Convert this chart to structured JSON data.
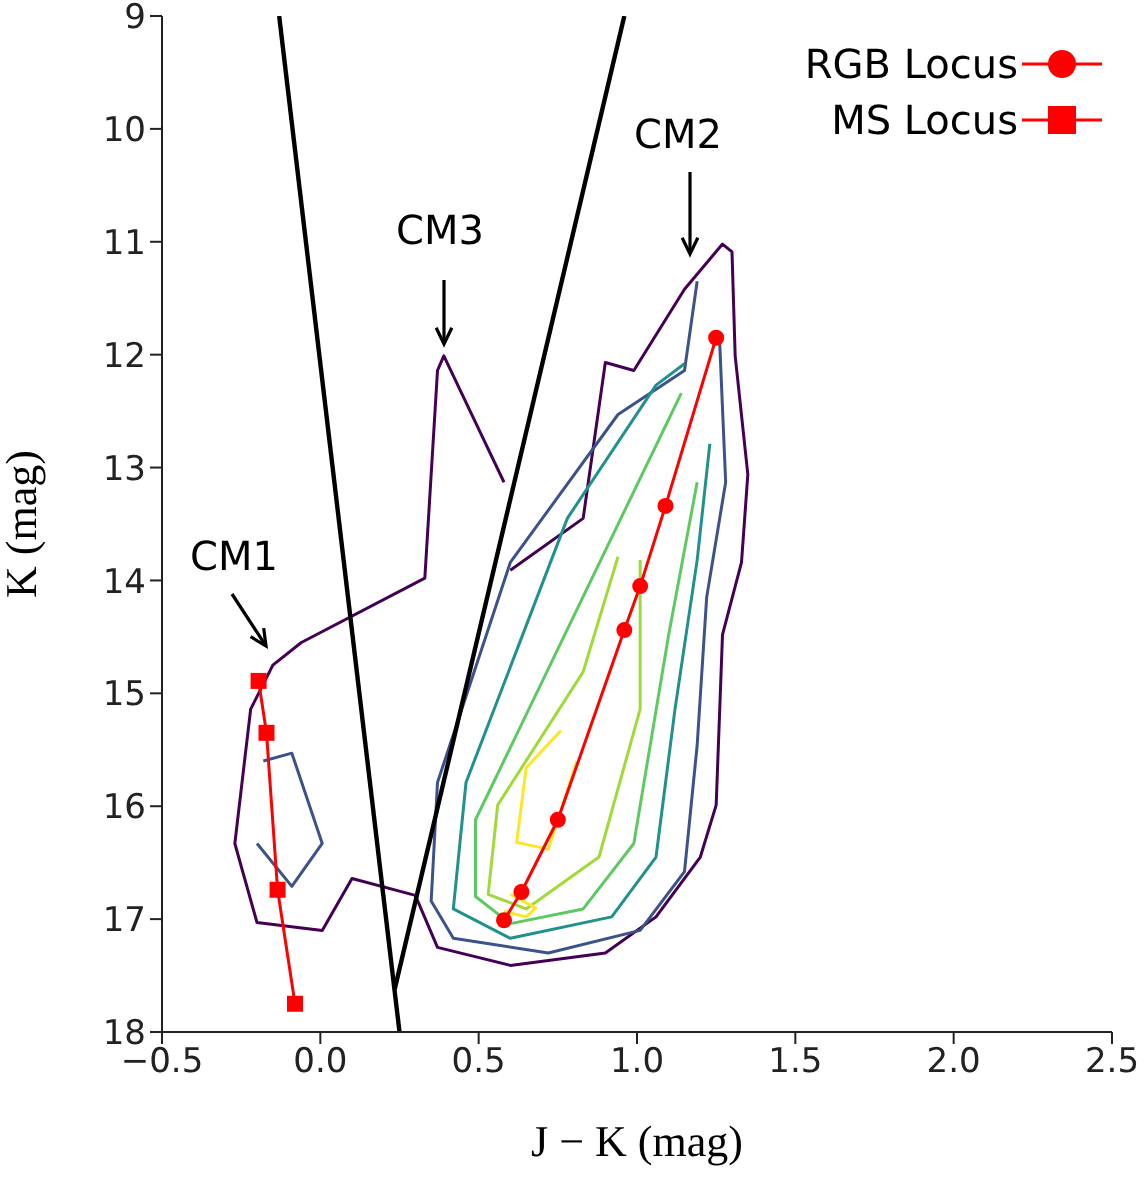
{
  "chart_data": {
    "type": "line",
    "xlabel": "J − K (mag)",
    "ylabel": "K (mag)",
    "xlim": [
      -0.5,
      2.5
    ],
    "xticks": [
      {
        "value": -0.5,
        "label": "−0.5"
      },
      {
        "value": 0,
        "label": "0.0"
      },
      {
        "value": 0.5,
        "label": "0.5"
      },
      {
        "value": 1,
        "label": "1.0"
      },
      {
        "value": 1.5,
        "label": "1.5"
      },
      {
        "value": 2,
        "label": "2.0"
      },
      {
        "value": 2.5,
        "label": "2.5"
      }
    ],
    "ylim": [
      18,
      9
    ],
    "yticks": [
      9,
      10,
      11,
      12,
      13,
      14,
      15,
      16,
      17,
      18
    ],
    "grid": false,
    "legend": "top right",
    "marker": "none",
    "line_style": "solid",
    "annotations": [
      "CM1",
      "CM2",
      "CM3"
    ],
    "series": [
      {
        "color": "#440154",
        "x": [
          0.6,
          0.83,
          0.9,
          0.99,
          1.15,
          1.27,
          1.3,
          1.31,
          1.35,
          1.33,
          1.27,
          1.25,
          1.2,
          1.06,
          0.9,
          0.6,
          0.37,
          0.3,
          0.1,
          0.006,
          -0.2,
          -0.27,
          -0.22,
          -0.15,
          -0.06,
          0.33,
          0.37,
          0.39,
          0.49,
          0.58
        ],
        "values": [
          13.91,
          13.45,
          12.07,
          12.14,
          11.42,
          11.02,
          11.09,
          12.01,
          13.06,
          13.84,
          14.48,
          15.99,
          16.45,
          16.98,
          17.3,
          17.41,
          17.25,
          16.79,
          16.64,
          17.1,
          17.03,
          16.33,
          15.14,
          14.75,
          14.55,
          13.98,
          12.14,
          12.01,
          12.6,
          13.13
        ]
      },
      {
        "color": "#3b528b",
        "x": [
          1.19,
          1.15,
          0.94,
          0.6,
          0.37,
          0.35,
          0.42,
          0.72,
          1.01,
          1.15,
          1.19,
          1.22,
          1.28,
          1.26
        ],
        "values": [
          11.35,
          12.14,
          12.53,
          13.84,
          15.79,
          16.84,
          17.17,
          17.3,
          17.1,
          16.58,
          15.46,
          14.15,
          13.13,
          11.82
        ]
      },
      {
        "color": "#3b528b",
        "x": [
          -0.18,
          -0.09,
          0.006,
          -0.09,
          -0.2
        ],
        "values": [
          15.6,
          15.53,
          16.33,
          16.71,
          16.33
        ]
      },
      {
        "color": "#21918c",
        "x": [
          1.15,
          1.06,
          0.78,
          0.46,
          0.42,
          0.6,
          0.92,
          1.06,
          1.12,
          1.19,
          1.23
        ],
        "values": [
          12.08,
          12.27,
          13.45,
          15.79,
          16.91,
          17.17,
          16.98,
          16.45,
          15.14,
          13.82,
          12.79
        ]
      },
      {
        "color": "#5ec962",
        "x": [
          1.14,
          0.49,
          0.49,
          0.6,
          0.83,
          0.99,
          1.1,
          1.19
        ],
        "values": [
          12.34,
          16.12,
          16.8,
          17.04,
          16.91,
          16.33,
          14.48,
          13.13
        ]
      },
      {
        "color": "#a0da39",
        "x": [
          0.94,
          0.83,
          0.56,
          0.53,
          0.65,
          0.88,
          1.01,
          1.01
        ],
        "values": [
          13.79,
          14.81,
          15.99,
          16.78,
          16.91,
          16.45,
          15.14,
          13.82
        ]
      },
      {
        "color": "#fde725",
        "x": [
          0.76,
          0.65,
          0.62,
          0.72,
          0.81
        ],
        "values": [
          15.33,
          15.66,
          16.32,
          16.38,
          15.6
        ]
      },
      {
        "color": "#fde725",
        "x": [
          0.6,
          0.68,
          0.65,
          0.58
        ],
        "values": [
          16.78,
          16.9,
          16.98,
          16.93
        ]
      },
      {
        "color": "#000000",
        "x": [
          -0.13,
          0.25
        ],
        "values": [
          9,
          18
        ]
      },
      {
        "color": "#000000",
        "x": [
          0.96,
          0.235
        ],
        "values": [
          9,
          17.62
        ]
      },
      {
        "name": "RGB Locus",
        "color": "#ff0000",
        "marker": "circle",
        "x": [
          1.25,
          1.09,
          1.01,
          0.96,
          0.75,
          0.635,
          0.58
        ],
        "values": [
          11.85,
          13.34,
          14.05,
          14.44,
          16.12,
          16.76,
          17.01
        ]
      },
      {
        "name": "MS Locus",
        "color": "#ff0000",
        "marker": "square",
        "x": [
          -0.195,
          -0.17,
          -0.135,
          -0.08
        ],
        "values": [
          14.89,
          15.35,
          16.74,
          17.75
        ]
      }
    ]
  }
}
